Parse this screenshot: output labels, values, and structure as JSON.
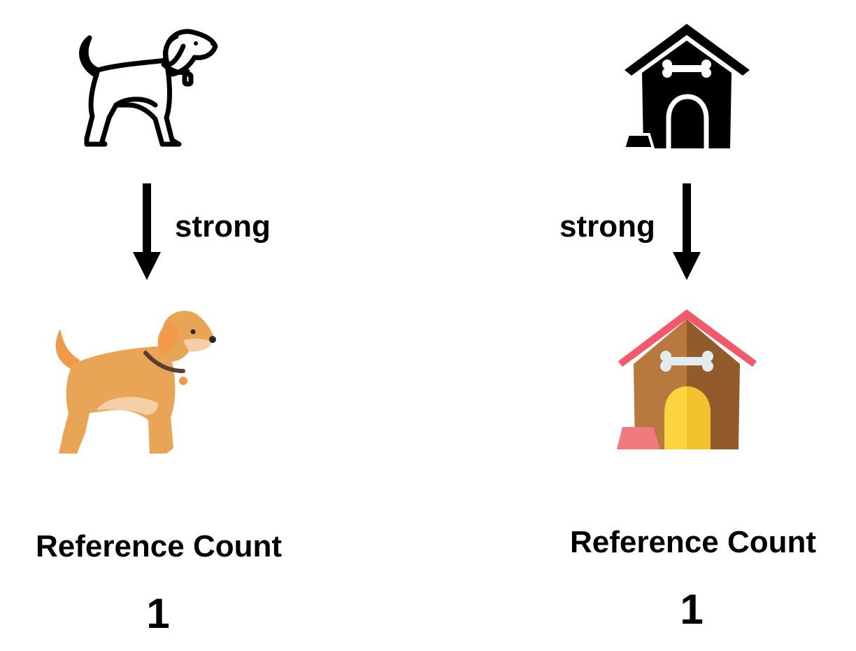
{
  "left": {
    "owner_icon": "dog-outline-icon",
    "target_icon": "dog-color-icon",
    "arrow_label": "strong",
    "ref_label": "Reference Count",
    "ref_value": "1"
  },
  "right": {
    "owner_icon": "doghouse-outline-icon",
    "target_icon": "doghouse-color-icon",
    "arrow_label": "strong",
    "ref_label": "Reference Count",
    "ref_value": "1"
  },
  "colors": {
    "dog_fur": "#E8A555",
    "dog_belly": "#F2CFA4",
    "dog_ear": "#F09A4A",
    "collar": "#5A3B35",
    "roof": "#F05A6A",
    "house_left": "#B8793F",
    "house_right": "#935A2C",
    "door": "#FBD440",
    "bowl": "#F27A7E",
    "bone": "#E2ECEE"
  }
}
